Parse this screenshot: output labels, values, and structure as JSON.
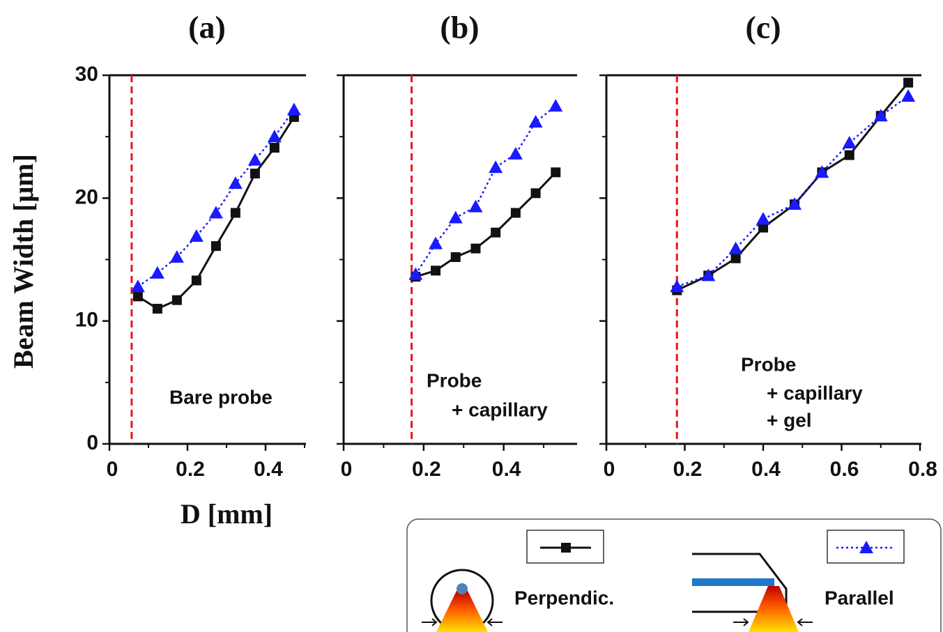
{
  "chart_data": [
    {
      "type": "line",
      "title": "(a)",
      "ylabel": "Beam Width [μm]",
      "xlabel": "D [mm]",
      "xlim": [
        0,
        0.5
      ],
      "ylim": [
        0,
        30
      ],
      "xticks": [
        0,
        0.2,
        0.4
      ],
      "yticks": [
        0,
        10,
        20,
        30
      ],
      "vline": 0.057,
      "vline_color": "#e8141c",
      "annotation": [
        "Bare probe"
      ],
      "x": [
        0.073,
        0.123,
        0.173,
        0.223,
        0.273,
        0.323,
        0.373,
        0.423,
        0.473
      ],
      "series": [
        {
          "name": "Perpendic.",
          "color": "#111111",
          "values": [
            12.0,
            11.0,
            11.7,
            13.3,
            16.1,
            18.8,
            22.0,
            24.1,
            26.6
          ]
        },
        {
          "name": "Parallel",
          "color": "#1a1aff",
          "values": [
            12.8,
            13.9,
            15.2,
            16.9,
            18.8,
            21.2,
            23.1,
            25.0,
            27.2
          ]
        }
      ]
    },
    {
      "type": "line",
      "title": "(b)",
      "xlim": [
        0,
        0.58
      ],
      "ylim": [
        0,
        30
      ],
      "xticks": [
        0,
        0.2,
        0.4
      ],
      "yticks": [
        0,
        10,
        20,
        30
      ],
      "vline": 0.17,
      "vline_color": "#e8141c",
      "annotation": [
        "Probe",
        "+ capillary"
      ],
      "x": [
        0.18,
        0.23,
        0.28,
        0.33,
        0.38,
        0.43,
        0.48,
        0.53
      ],
      "series": [
        {
          "color": "#111111",
          "values": [
            13.6,
            14.1,
            15.2,
            15.9,
            17.2,
            18.8,
            20.4,
            22.1
          ]
        },
        {
          "color": "#1a1aff",
          "values": [
            13.8,
            16.3,
            18.4,
            19.3,
            22.5,
            23.6,
            26.2,
            27.5
          ]
        }
      ]
    },
    {
      "type": "line",
      "title": "(c)",
      "xlim": [
        0,
        0.8
      ],
      "ylim": [
        0,
        30
      ],
      "xticks": [
        0,
        0.2,
        0.4,
        0.6,
        0.8
      ],
      "yticks": [
        0,
        10,
        20,
        30
      ],
      "vline": 0.18,
      "vline_color": "#e8141c",
      "annotation": [
        "Probe",
        "+ capillary",
        "+ gel"
      ],
      "x": [
        0.18,
        0.26,
        0.33,
        0.4,
        0.48,
        0.55,
        0.62,
        0.7,
        0.77
      ],
      "series": [
        {
          "color": "#111111",
          "values": [
            12.5,
            13.7,
            15.1,
            17.6,
            19.5,
            22.1,
            23.5,
            26.7,
            29.4
          ]
        },
        {
          "color": "#1a1aff",
          "values": [
            12.8,
            13.7,
            15.9,
            18.3,
            19.5,
            22.1,
            24.5,
            26.7,
            28.3
          ]
        }
      ]
    }
  ]
}
